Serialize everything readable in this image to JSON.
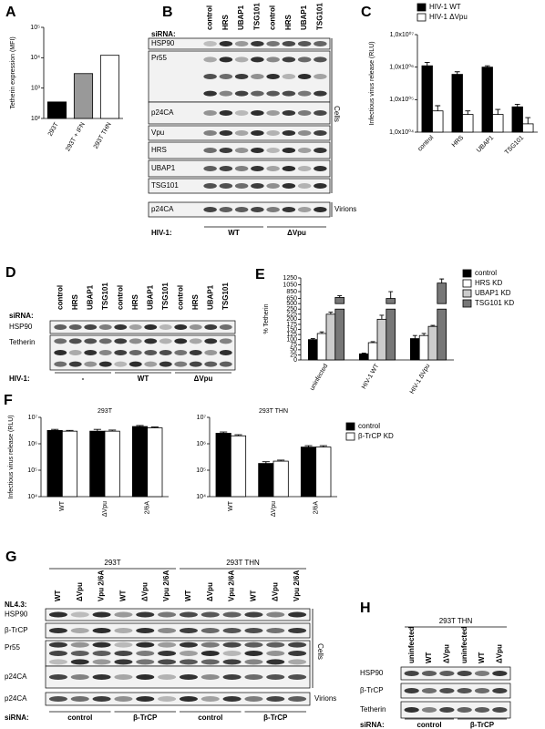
{
  "chart_data": [
    {
      "type": "bar",
      "label": "A",
      "ylabel": "Tetherin expression (MFI)",
      "categories": [
        "293T",
        "293T + IFN",
        "293T THN"
      ],
      "values": [
        350,
        3000,
        12000
      ],
      "colors": [
        "#000000",
        "#999999",
        "#ffffff"
      ],
      "log_scale": true,
      "ylim": [
        100,
        100000
      ],
      "yticks": [
        {
          "value": 100,
          "label": "10²"
        },
        {
          "value": 1000,
          "label": "10³"
        },
        {
          "value": 10000,
          "label": "10⁴"
        },
        {
          "value": 100000,
          "label": "10⁵"
        }
      ]
    },
    {
      "type": "bar",
      "label": "C",
      "ylabel": "Infectious virus release (RLU)",
      "categories": [
        "control",
        "HRS",
        "UBAP1",
        "TSG101"
      ],
      "series": [
        {
          "name": "HIV-1 WT",
          "color": "#000000",
          "values": [
            1100000,
            600000,
            1000000,
            60000
          ],
          "errors": [
            300000,
            120000,
            100000,
            12000
          ]
        },
        {
          "name": "HIV-1 ΔVpu",
          "color": "#ffffff",
          "values": [
            45000,
            35000,
            35000,
            18000
          ],
          "errors": [
            20000,
            10000,
            15000,
            10000
          ]
        }
      ],
      "log_scale": true,
      "ylim": [
        10000,
        10000000
      ],
      "yticks": [
        {
          "value": 10000,
          "label": "1,0x10⁰⁴"
        },
        {
          "value": 100000,
          "label": "1,0x10⁰⁵"
        },
        {
          "value": 1000000,
          "label": "1,0x10⁰⁶"
        },
        {
          "value": 10000000,
          "label": "1,0x10⁰⁷"
        }
      ]
    },
    {
      "type": "bar",
      "label": "E",
      "ylabel": "% Tetherin",
      "categories": [
        "uninfected",
        "HIV-1 WT",
        "HIV-1 ΔVpu"
      ],
      "series": [
        {
          "name": "control",
          "color": "#000000",
          "values": [
            100,
            30,
            105
          ],
          "errors": [
            5,
            3,
            15
          ]
        },
        {
          "name": "HRS KD",
          "color": "#ffffff",
          "values": [
            130,
            85,
            120
          ],
          "errors": [
            8,
            5,
            10
          ]
        },
        {
          "name": "UBAP1 KD",
          "color": "#cccccc",
          "values": [
            225,
            200,
            165
          ],
          "errors": [
            10,
            20,
            5
          ]
        },
        {
          "name": "TSG101 KD",
          "color": "#777777",
          "values": [
            680,
            650,
            1100
          ],
          "errors": [
            50,
            200,
            120
          ]
        }
      ],
      "ylim": [
        0,
        1250
      ],
      "axis_break": [
        250,
        500
      ],
      "yticks": [
        0,
        25,
        50,
        75,
        100,
        125,
        150,
        175,
        200,
        225,
        250,
        500,
        650,
        850,
        1050,
        1250
      ]
    },
    {
      "type": "bar",
      "label": "F",
      "title": "293T",
      "ylabel": "Infectious virus release (RLU)",
      "categories": [
        "WT",
        "ΔVpu",
        "2/6A"
      ],
      "series": [
        {
          "color": "#000000",
          "values": [
            3200000,
            3000000,
            4500000
          ],
          "errors": [
            300000,
            500000,
            400000
          ]
        },
        {
          "color": "#ffffff",
          "values": [
            3000000,
            3000000,
            4000000
          ],
          "errors": [
            200000,
            300000,
            300000
          ]
        }
      ],
      "log_scale": true,
      "ylim": [
        10000,
        10000000
      ],
      "yticks": [
        {
          "value": 10000,
          "label": "10⁴"
        },
        {
          "value": 100000,
          "label": "10⁵"
        },
        {
          "value": 1000000,
          "label": "10⁶"
        },
        {
          "value": 10000000,
          "label": "10⁷"
        }
      ]
    },
    {
      "type": "bar",
      "title": "293T THN",
      "categories": [
        "WT",
        "ΔVpu",
        "2/6A"
      ],
      "series": [
        {
          "name": "control",
          "color": "#000000",
          "values": [
            2500000,
            180000,
            750000
          ],
          "errors": [
            300000,
            30000,
            100000
          ]
        },
        {
          "name": "β-TrCP KD",
          "color": "#ffffff",
          "values": [
            2000000,
            220000,
            750000
          ],
          "errors": [
            200000,
            20000,
            100000
          ]
        }
      ],
      "log_scale": true,
      "ylim": [
        10000,
        10000000
      ],
      "yticks": [
        {
          "value": 10000,
          "label": "10⁴"
        },
        {
          "value": 100000,
          "label": "10⁵"
        },
        {
          "value": 1000000,
          "label": "10⁶"
        },
        {
          "value": 10000000,
          "label": "10⁷"
        }
      ]
    }
  ],
  "blots": [
    {
      "label": "B",
      "row_header": "siRNA:",
      "lanes": [
        "control",
        "HRS",
        "UBAP1",
        "TSG101",
        "control",
        "HRS",
        "UBAP1",
        "TSG101"
      ],
      "rows": [
        "HSP90",
        "Pr55",
        "p24CA",
        "Vpu",
        "HRS",
        "UBAP1",
        "TSG101",
        "p24CA"
      ],
      "side_labels": [
        "Cells",
        "Virions"
      ],
      "footer_header": "HIV-1:",
      "groups": [
        "WT",
        "ΔVpu"
      ]
    },
    {
      "label": "D",
      "row_header": "siRNA:",
      "lanes": [
        "control",
        "HRS",
        "UBAP1",
        "TSG101",
        "control",
        "HRS",
        "UBAP1",
        "TSG101",
        "control",
        "HRS",
        "UBAP1",
        "TSG101"
      ],
      "rows": [
        "HSP90",
        "Tetherin"
      ],
      "footer_header": "HIV-1:",
      "groups": [
        "-",
        "WT",
        "ΔVpu"
      ]
    },
    {
      "label": "G",
      "top_groups": [
        "293T",
        "293T THN"
      ],
      "row_header": "NL4.3:",
      "lanes": [
        "WT",
        "ΔVpu",
        "Vpu 2/6A",
        "WT",
        "ΔVpu",
        "Vpu 2/6A",
        "WT",
        "ΔVpu",
        "Vpu 2/6A",
        "WT",
        "ΔVpu",
        "Vpu 2/6A"
      ],
      "rows": [
        "HSP90",
        "β-TrCP",
        "Pr55",
        "p24CA",
        "p24CA"
      ],
      "side_labels": [
        "Cells",
        "Virions"
      ],
      "footer_header": "siRNA:",
      "groups": [
        "control",
        "β-TrCP",
        "control",
        "β-TrCP"
      ]
    },
    {
      "label": "H",
      "top_groups": [
        "293T THN"
      ],
      "lanes": [
        "uninfected",
        "WT",
        "ΔVpu",
        "uninfected",
        "WT",
        "ΔVpu"
      ],
      "rows": [
        "HSP90",
        "β-TrCP",
        "Tetherin"
      ],
      "footer_header": "siRNA:",
      "groups": [
        "control",
        "β-TrCP"
      ]
    }
  ]
}
